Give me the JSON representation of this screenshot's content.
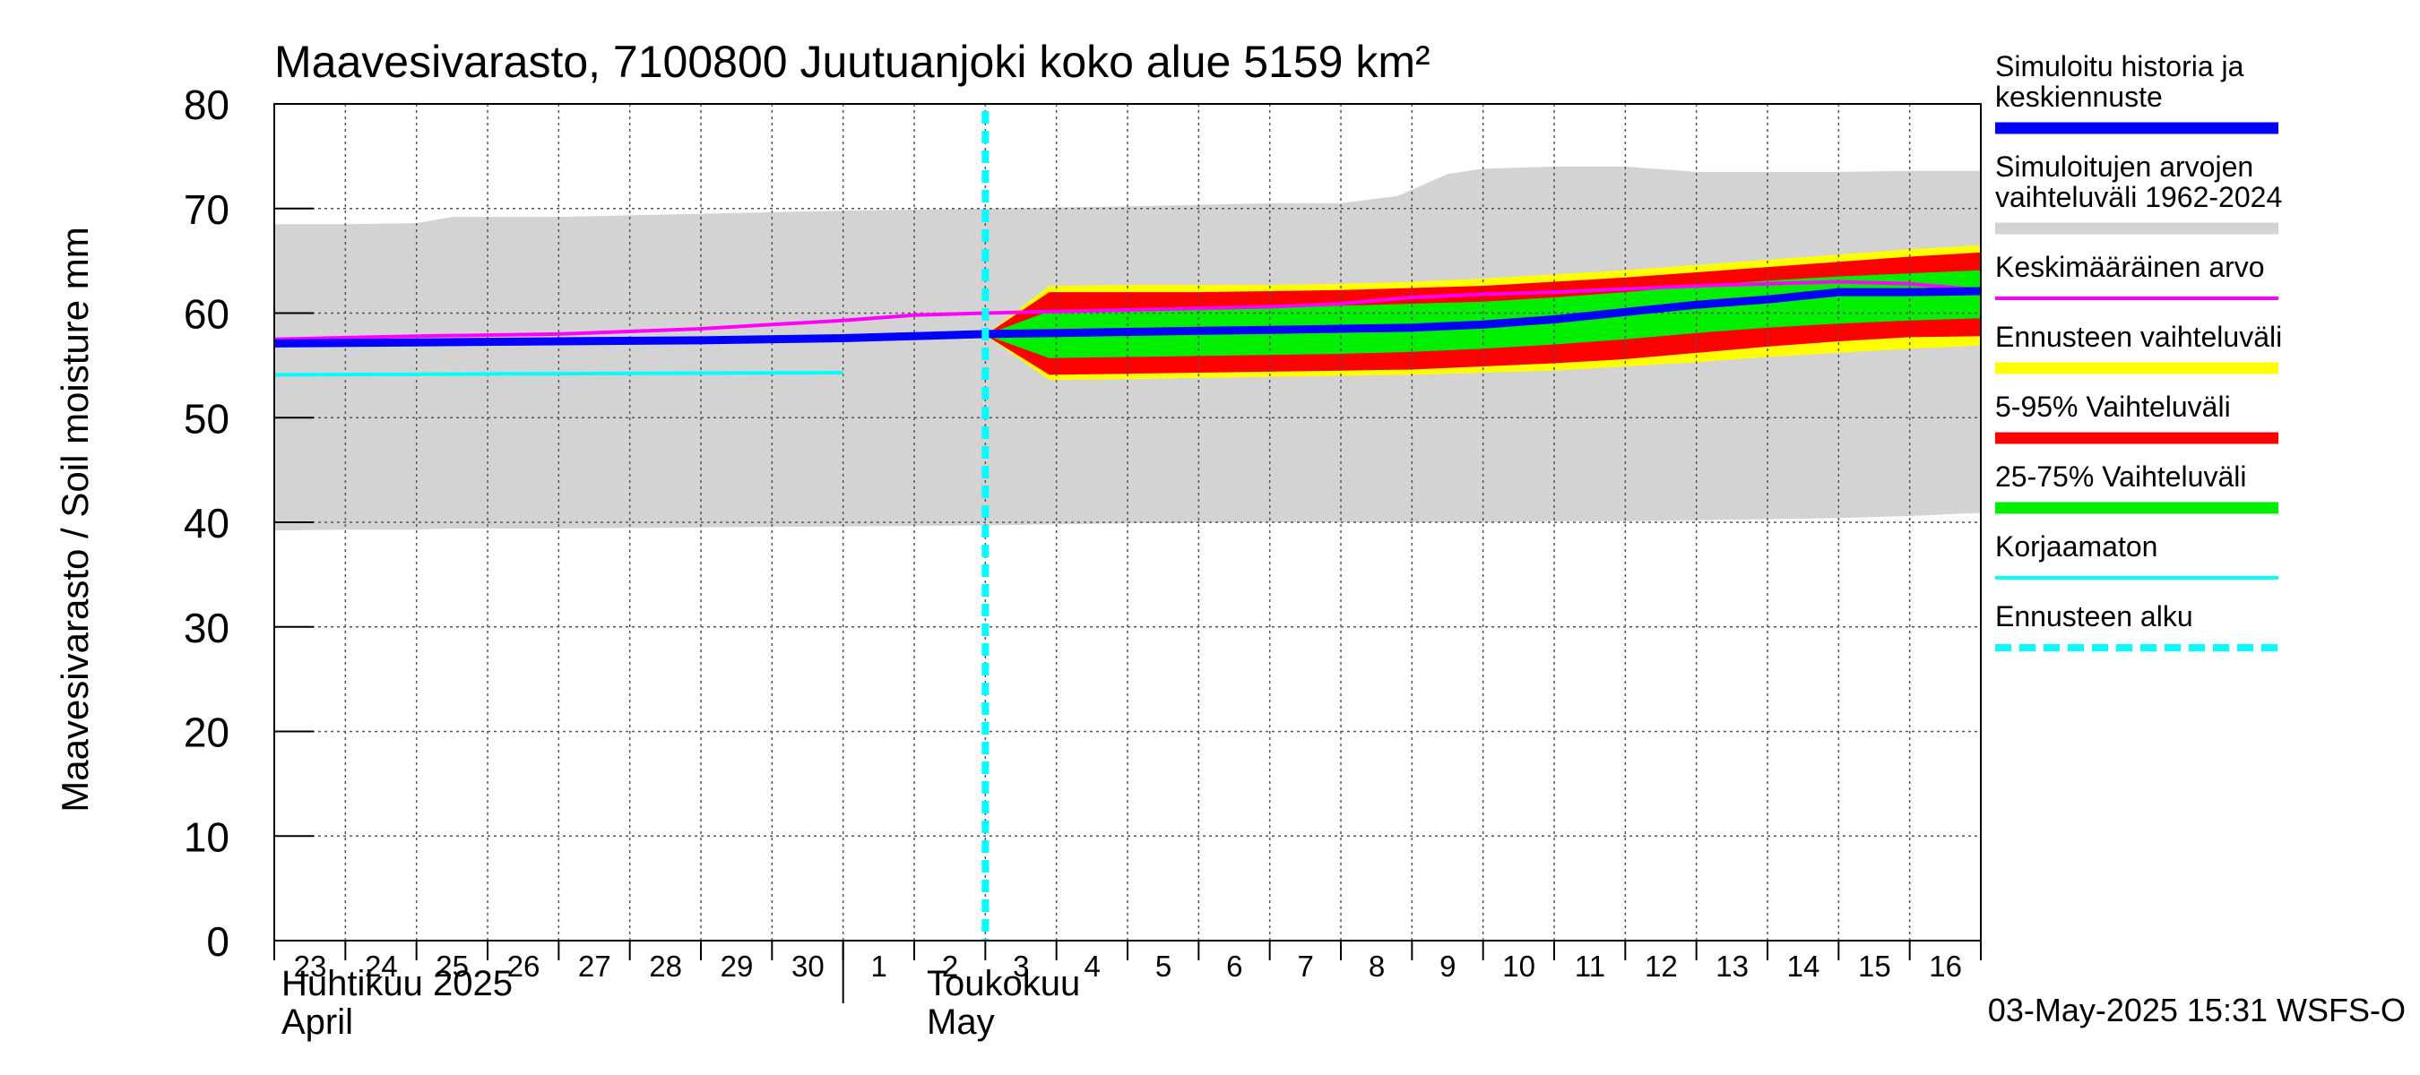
{
  "chart_data": {
    "type": "area",
    "title": "Maavesivarasto, 7100800 Juutuanjoki koko alue 5159 km²",
    "ylabel": "Maavesivarasto / Soil moisture   mm",
    "ylim": [
      0,
      80
    ],
    "yticks": [
      0,
      10,
      20,
      30,
      40,
      50,
      60,
      70,
      80
    ],
    "grid": true,
    "x_range": [
      23,
      47
    ],
    "x_axis_days": [
      {
        "x": 23,
        "label": "23"
      },
      {
        "x": 24,
        "label": "24"
      },
      {
        "x": 25,
        "label": "25"
      },
      {
        "x": 26,
        "label": "26"
      },
      {
        "x": 27,
        "label": "27"
      },
      {
        "x": 28,
        "label": "28"
      },
      {
        "x": 29,
        "label": "29"
      },
      {
        "x": 30,
        "label": "30"
      },
      {
        "x": 31,
        "label": "1"
      },
      {
        "x": 32,
        "label": "2"
      },
      {
        "x": 33,
        "label": "3"
      },
      {
        "x": 34,
        "label": "4"
      },
      {
        "x": 35,
        "label": "5"
      },
      {
        "x": 36,
        "label": "6"
      },
      {
        "x": 37,
        "label": "7"
      },
      {
        "x": 38,
        "label": "8"
      },
      {
        "x": 39,
        "label": "9"
      },
      {
        "x": 40,
        "label": "10"
      },
      {
        "x": 41,
        "label": "11"
      },
      {
        "x": 42,
        "label": "12"
      },
      {
        "x": 43,
        "label": "13"
      },
      {
        "x": 44,
        "label": "14"
      },
      {
        "x": 45,
        "label": "15"
      },
      {
        "x": 46,
        "label": "16"
      }
    ],
    "months": [
      {
        "x": 23,
        "line1": "Huhtikuu  2025",
        "line2": "April"
      },
      {
        "x": 32,
        "line1": "Toukokuu",
        "line2": "May"
      }
    ],
    "month_divider_x": 31,
    "forecast_start_x": 33,
    "series": [
      {
        "name": "Simuloitujen arvojen vaihteluväli 1962-2024",
        "kind": "band",
        "color": "#d3d3d3",
        "x": [
          23,
          24,
          25,
          25.5,
          27,
          29,
          31,
          33,
          35,
          37,
          38,
          38.8,
          39.5,
          40,
          41,
          42,
          43,
          44,
          45,
          46,
          47
        ],
        "upper": [
          68.5,
          68.5,
          68.6,
          69.2,
          69.2,
          69.5,
          69.8,
          70,
          70.2,
          70.5,
          70.5,
          71.2,
          73.3,
          73.8,
          74,
          74,
          73.5,
          73.5,
          73.5,
          73.6,
          73.6
        ],
        "lower": [
          39.2,
          39.3,
          39.3,
          39.4,
          39.4,
          39.5,
          39.6,
          39.7,
          39.9,
          40,
          40,
          40,
          40,
          40,
          40.1,
          40.1,
          40.2,
          40.3,
          40.4,
          40.6,
          40.9
        ]
      },
      {
        "name": "Ennusteen vaihteluväli",
        "kind": "band",
        "color": "#ffff00",
        "x": [
          33,
          33.9,
          35,
          36,
          37,
          38,
          39,
          40,
          41,
          42,
          43,
          44,
          45,
          46,
          47
        ],
        "upper": [
          57.9,
          62.6,
          62.7,
          62.7,
          62.7,
          62.8,
          63,
          63.3,
          63.7,
          64.1,
          64.6,
          65.1,
          65.6,
          66.1,
          66.5
        ],
        "lower": [
          57.9,
          53.6,
          53.7,
          53.8,
          53.9,
          54,
          54.1,
          54.3,
          54.5,
          54.9,
          55.3,
          55.8,
          56.2,
          56.6,
          56.9
        ]
      },
      {
        "name": "5-95% Vaihteluväli",
        "kind": "band",
        "color": "#ff0000",
        "x": [
          33,
          33.9,
          35,
          36,
          37,
          38,
          39,
          40,
          41,
          42,
          43,
          44,
          45,
          46,
          47
        ],
        "upper": [
          57.9,
          62,
          62,
          62,
          62.1,
          62.2,
          62.4,
          62.6,
          63,
          63.4,
          63.9,
          64.4,
          64.9,
          65.4,
          65.8
        ],
        "lower": [
          57.9,
          54.1,
          54.2,
          54.3,
          54.4,
          54.5,
          54.6,
          54.9,
          55.2,
          55.6,
          56.2,
          56.8,
          57.3,
          57.7,
          57.8
        ]
      },
      {
        "name": "25-75% Vaihteluväli",
        "kind": "band",
        "color": "#00ee00",
        "x": [
          33,
          33.9,
          35,
          36,
          37,
          38,
          39,
          40,
          41,
          42,
          43,
          44,
          45,
          46,
          47
        ],
        "upper": [
          57.9,
          60.2,
          60.3,
          60.4,
          60.5,
          60.7,
          60.9,
          61.1,
          61.5,
          62,
          62.6,
          63.1,
          63.5,
          63.8,
          64.1
        ],
        "lower": [
          57.9,
          55.7,
          55.8,
          55.9,
          56,
          56.1,
          56.3,
          56.6,
          57,
          57.5,
          58.1,
          58.6,
          59,
          59.3,
          59.5
        ]
      },
      {
        "name": "Korjaamaton",
        "kind": "line",
        "color": "#00ffff",
        "width": 4,
        "x": [
          23,
          31
        ],
        "y": [
          54.1,
          54.3
        ]
      },
      {
        "name": "Keskimääräinen arvo",
        "kind": "line",
        "color": "#ff00ff",
        "width": 4,
        "x": [
          23,
          25,
          27,
          29,
          30,
          31,
          32,
          33,
          35,
          37,
          38,
          39,
          40,
          41,
          42,
          43,
          44,
          45,
          46,
          47
        ],
        "y": [
          57.5,
          57.8,
          58,
          58.5,
          58.9,
          59.3,
          59.8,
          60,
          60.3,
          60.6,
          60.9,
          61.5,
          61.8,
          62,
          62.3,
          62.6,
          62.8,
          63,
          62.8,
          62.2
        ]
      },
      {
        "name": "Simuloitu historia ja keskiennuste",
        "kind": "line",
        "color": "#0000ff",
        "width": 9,
        "x": [
          23,
          25,
          27,
          29,
          31,
          32,
          33,
          34,
          35,
          36,
          37,
          38,
          39,
          40,
          41,
          42,
          43,
          44,
          45,
          46,
          47
        ],
        "y": [
          57.1,
          57.2,
          57.3,
          57.4,
          57.6,
          57.8,
          58,
          58.1,
          58.2,
          58.3,
          58.4,
          58.5,
          58.6,
          58.9,
          59.4,
          60.1,
          60.8,
          61.3,
          62,
          62,
          62.1
        ]
      }
    ],
    "legend_position": "right",
    "legend": [
      {
        "label": "Simuloitu historia ja\nkeskiennuste",
        "color": "#0000ff",
        "style": "thick"
      },
      {
        "label": "Simuloitujen arvojen\nvaihteluväli 1962-2024",
        "color": "#d3d3d3",
        "style": "thick"
      },
      {
        "label": "Keskimääräinen arvo",
        "color": "#ff00ff",
        "style": "thin"
      },
      {
        "label": "Ennusteen vaihteluväli",
        "color": "#ffff00",
        "style": "thick"
      },
      {
        "label": "5-95% Vaihteluväli",
        "color": "#ff0000",
        "style": "thick"
      },
      {
        "label": "25-75% Vaihteluväli",
        "color": "#00ee00",
        "style": "thick"
      },
      {
        "label": "Korjaamaton",
        "color": "#00ffff",
        "style": "thin"
      },
      {
        "label": "Ennusteen alku",
        "color": "#00ffff",
        "style": "dashed"
      }
    ],
    "timestamp": "03-May-2025 15:31 WSFS-O"
  }
}
